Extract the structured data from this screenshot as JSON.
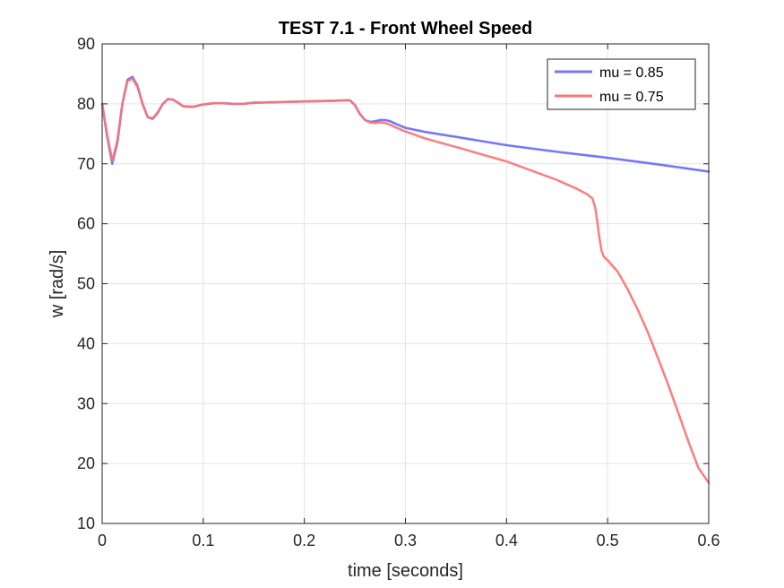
{
  "chart_data": {
    "type": "line",
    "title": "TEST 7.1 - Front Wheel Speed",
    "xlabel": "time [seconds]",
    "ylabel": "w [rad/s]",
    "xlim": [
      0,
      0.6
    ],
    "ylim": [
      10,
      90
    ],
    "xticks": [
      0,
      0.1,
      0.2,
      0.3,
      0.4,
      0.5,
      0.6
    ],
    "xtick_labels": [
      "0",
      "0.1",
      "0.2",
      "0.3",
      "0.4",
      "0.5",
      "0.6"
    ],
    "yticks": [
      10,
      20,
      30,
      40,
      50,
      60,
      70,
      80,
      90
    ],
    "ytick_labels": [
      "10",
      "20",
      "30",
      "40",
      "50",
      "60",
      "70",
      "80",
      "90"
    ],
    "grid": true,
    "legend_location": "top-right",
    "series": [
      {
        "name": "mu = 0.85",
        "color": "#7777f7",
        "x": [
          0,
          0.005,
          0.01,
          0.015,
          0.02,
          0.025,
          0.03,
          0.035,
          0.04,
          0.045,
          0.05,
          0.055,
          0.06,
          0.065,
          0.07,
          0.075,
          0.08,
          0.09,
          0.1,
          0.11,
          0.12,
          0.13,
          0.14,
          0.15,
          0.175,
          0.2,
          0.225,
          0.245,
          0.25,
          0.255,
          0.26,
          0.265,
          0.27,
          0.275,
          0.28,
          0.285,
          0.29,
          0.3,
          0.32,
          0.35,
          0.4,
          0.45,
          0.5,
          0.55,
          0.6
        ],
        "y": [
          80,
          74.5,
          70,
          73.5,
          80,
          84,
          84.5,
          83,
          80,
          77.8,
          77.5,
          78.5,
          80,
          80.8,
          80.7,
          80.2,
          79.6,
          79.5,
          79.9,
          80.1,
          80.1,
          80.0,
          80.0,
          80.2,
          80.3,
          80.4,
          80.5,
          80.6,
          79.8,
          78.3,
          77.3,
          77.0,
          77.1,
          77.3,
          77.3,
          77.1,
          76.7,
          76.0,
          75.3,
          74.5,
          73.1,
          72.0,
          71.0,
          69.9,
          68.7
        ]
      },
      {
        "name": "mu = 0.75",
        "color": "#f77777",
        "x": [
          0,
          0.005,
          0.01,
          0.015,
          0.02,
          0.025,
          0.03,
          0.035,
          0.04,
          0.045,
          0.05,
          0.055,
          0.06,
          0.065,
          0.07,
          0.075,
          0.08,
          0.09,
          0.1,
          0.11,
          0.12,
          0.13,
          0.14,
          0.15,
          0.175,
          0.2,
          0.225,
          0.245,
          0.25,
          0.255,
          0.26,
          0.265,
          0.27,
          0.275,
          0.28,
          0.285,
          0.29,
          0.3,
          0.32,
          0.35,
          0.4,
          0.45,
          0.47,
          0.48,
          0.485,
          0.488,
          0.49,
          0.492,
          0.494,
          0.496,
          0.498,
          0.5,
          0.51,
          0.52,
          0.53,
          0.54,
          0.55,
          0.56,
          0.57,
          0.58,
          0.59,
          0.6
        ],
        "y": [
          80,
          74.8,
          70.5,
          73.8,
          80,
          83.8,
          84.2,
          82.8,
          80,
          77.8,
          77.6,
          78.6,
          80,
          80.8,
          80.7,
          80.2,
          79.6,
          79.5,
          79.9,
          80.1,
          80.1,
          80.0,
          80.0,
          80.2,
          80.3,
          80.4,
          80.5,
          80.6,
          79.8,
          78.3,
          77.3,
          76.9,
          76.8,
          76.9,
          76.8,
          76.5,
          76.1,
          75.4,
          74.2,
          72.8,
          70.4,
          67.3,
          65.8,
          64.9,
          64.2,
          62.5,
          60.0,
          57.5,
          55.5,
          54.6,
          54.2,
          53.9,
          52.0,
          49.0,
          45.6,
          41.8,
          37.5,
          33.1,
          28.4,
          23.6,
          19.2,
          16.8
        ]
      }
    ]
  }
}
